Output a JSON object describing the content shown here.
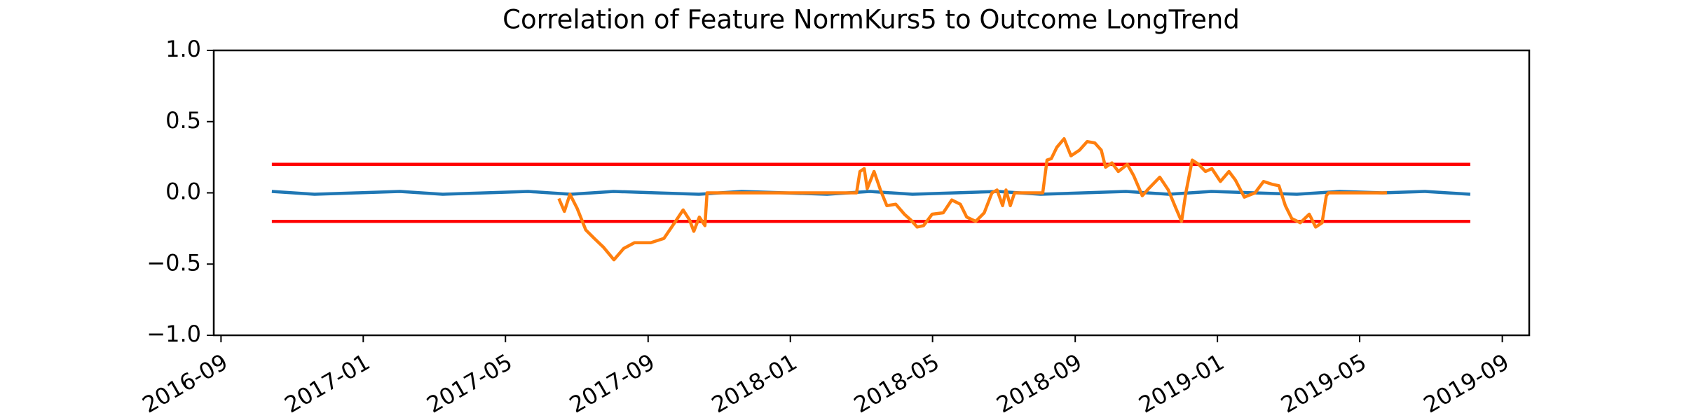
{
  "chart_data": {
    "type": "line",
    "title": "Correlation of Feature NormKurs5 to Outcome LongTrend",
    "xlim": [
      2016.65,
      2019.73
    ],
    "xticks": [
      {
        "value": 2016.667,
        "label": "2016-09"
      },
      {
        "value": 2017.0,
        "label": "2017-01"
      },
      {
        "value": 2017.333,
        "label": "2017-05"
      },
      {
        "value": 2017.667,
        "label": "2017-09"
      },
      {
        "value": 2018.0,
        "label": "2018-01"
      },
      {
        "value": 2018.333,
        "label": "2018-05"
      },
      {
        "value": 2018.667,
        "label": "2018-09"
      },
      {
        "value": 2019.0,
        "label": "2019-01"
      },
      {
        "value": 2019.333,
        "label": "2019-05"
      },
      {
        "value": 2019.667,
        "label": "2019-09"
      }
    ],
    "ylim": [
      -1.0,
      1.0
    ],
    "yticks": [
      {
        "value": -1.0,
        "label": "−1.0"
      },
      {
        "value": -0.5,
        "label": "−0.5"
      },
      {
        "value": 0.0,
        "label": "0.0"
      },
      {
        "value": 0.5,
        "label": "0.5"
      },
      {
        "value": 1.0,
        "label": "1.0"
      }
    ],
    "grid": false,
    "series": [
      {
        "color": "#ff0000",
        "x": [
          2016.786,
          2019.592
        ],
        "values": [
          0.2,
          0.2
        ]
      },
      {
        "color": "#ff0000",
        "x": [
          2016.786,
          2019.592
        ],
        "values": [
          -0.2,
          -0.2
        ]
      },
      {
        "color": "#1f77b4",
        "x": [
          2016.786,
          2016.886,
          2016.986,
          2017.086,
          2017.186,
          2017.286,
          2017.386,
          2017.486,
          2017.586,
          2017.686,
          2017.786,
          2017.886,
          2017.986,
          2018.086,
          2018.186,
          2018.286,
          2018.386,
          2018.486,
          2018.586,
          2018.686,
          2018.786,
          2018.886,
          2018.986,
          2019.086,
          2019.186,
          2019.286,
          2019.386,
          2019.486,
          2019.592
        ],
        "values": [
          0.01,
          -0.01,
          0.0,
          0.01,
          -0.01,
          0.0,
          0.01,
          -0.01,
          0.01,
          0.0,
          -0.01,
          0.01,
          0.0,
          -0.01,
          0.01,
          -0.01,
          0.0,
          0.01,
          -0.01,
          0.0,
          0.01,
          -0.01,
          0.01,
          0.0,
          -0.01,
          0.01,
          0.0,
          0.01,
          -0.01
        ]
      },
      {
        "color": "#ff7f0e",
        "x": [
          2017.458,
          2017.471,
          2017.484,
          2017.501,
          2017.521,
          2017.541,
          2017.562,
          2017.587,
          2017.61,
          2017.635,
          2017.673,
          2017.704,
          2017.729,
          2017.749,
          2017.764,
          2017.774,
          2017.787,
          2017.8,
          2017.805,
          2017.927,
          2018.079,
          2018.155,
          2018.163,
          2018.173,
          2018.18,
          2018.196,
          2018.211,
          2018.226,
          2018.247,
          2018.267,
          2018.282,
          2018.297,
          2018.312,
          2018.332,
          2018.358,
          2018.378,
          2018.398,
          2018.413,
          2018.434,
          2018.454,
          2018.472,
          2018.484,
          2018.497,
          2018.505,
          2018.515,
          2018.525,
          2018.591,
          2018.601,
          2018.611,
          2018.624,
          2018.641,
          2018.657,
          2018.677,
          2018.695,
          2018.713,
          2018.728,
          2018.738,
          2018.753,
          2018.768,
          2018.789,
          2018.804,
          2018.824,
          2018.839,
          2018.865,
          2018.885,
          2018.903,
          2018.916,
          2018.926,
          2018.941,
          2018.956,
          2018.972,
          2018.987,
          2019.007,
          2019.027,
          2019.042,
          2019.063,
          2019.088,
          2019.108,
          2019.128,
          2019.144,
          2019.159,
          2019.174,
          2019.194,
          2019.215,
          2019.23,
          2019.245,
          2019.255,
          2019.26,
          2019.397
        ],
        "values": [
          -0.04,
          -0.13,
          -0.01,
          -0.11,
          -0.26,
          -0.32,
          -0.38,
          -0.47,
          -0.39,
          -0.35,
          -0.35,
          -0.32,
          -0.21,
          -0.12,
          -0.19,
          -0.27,
          -0.17,
          -0.23,
          0.0,
          0.0,
          0.0,
          0.0,
          0.15,
          0.17,
          0.03,
          0.15,
          0.02,
          -0.09,
          -0.08,
          -0.15,
          -0.19,
          -0.24,
          -0.23,
          -0.15,
          -0.14,
          -0.05,
          -0.08,
          -0.17,
          -0.2,
          -0.14,
          0.0,
          0.02,
          -0.09,
          0.02,
          -0.09,
          0.0,
          0.0,
          0.23,
          0.24,
          0.32,
          0.38,
          0.26,
          0.3,
          0.36,
          0.35,
          0.3,
          0.18,
          0.21,
          0.15,
          0.2,
          0.12,
          -0.02,
          0.03,
          0.11,
          0.02,
          -0.11,
          -0.2,
          0.0,
          0.23,
          0.2,
          0.15,
          0.17,
          0.08,
          0.15,
          0.09,
          -0.03,
          0.0,
          0.08,
          0.06,
          0.05,
          -0.09,
          -0.18,
          -0.21,
          -0.15,
          -0.24,
          -0.21,
          -0.02,
          0.0,
          0.0
        ]
      }
    ]
  }
}
